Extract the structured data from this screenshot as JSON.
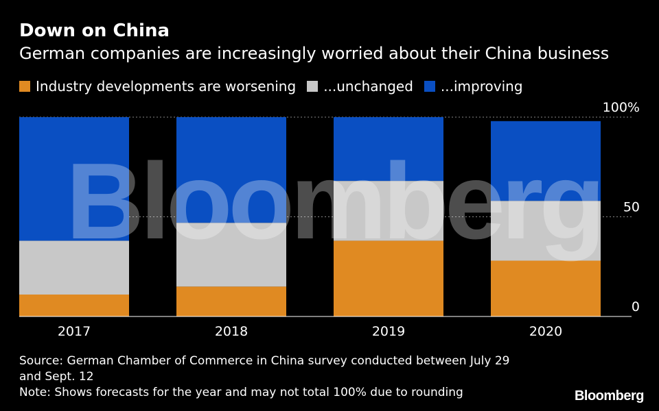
{
  "header": {
    "title": "Down on China",
    "subtitle": "German companies are increasingly worried about their China business"
  },
  "legend": [
    {
      "label": "Industry developments are worsening",
      "color": "#e08a22"
    },
    {
      "label": "...unchanged",
      "color": "#c8c8c8"
    },
    {
      "label": "...improving",
      "color": "#0a4fc2"
    }
  ],
  "chart_data": {
    "type": "bar",
    "stacked": true,
    "title": "Down on China",
    "subtitle": "German companies are increasingly worried about their China business",
    "categories": [
      "2017",
      "2018",
      "2019",
      "2020"
    ],
    "series": [
      {
        "name": "Industry developments are worsening",
        "color": "#e08a22",
        "values": [
          11,
          15,
          38,
          28
        ]
      },
      {
        "name": "...unchanged",
        "color": "#c8c8c8",
        "values": [
          27,
          32,
          30,
          30
        ]
      },
      {
        "name": "...improving",
        "color": "#0a4fc2",
        "values": [
          62,
          53,
          32,
          40
        ]
      }
    ],
    "ylim": [
      0,
      100
    ],
    "yticks": [
      {
        "value": 0,
        "label": "0"
      },
      {
        "value": 50,
        "label": "50"
      },
      {
        "value": 100,
        "label": "100%"
      }
    ],
    "xlabel": "",
    "ylabel": "",
    "grid": true,
    "axis_side": "right"
  },
  "footer": {
    "source_line1": "Source: German Chamber of Commerce in China survey conducted between July 29",
    "source_line2": "and Sept. 12",
    "note": "Note: Shows forecasts for the year and may not total 100% due to rounding"
  },
  "brand": "Bloomberg",
  "watermark": "Bloomberg"
}
